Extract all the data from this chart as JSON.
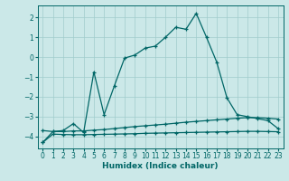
{
  "xlabel": "Humidex (Indice chaleur)",
  "background_color": "#cbe8e8",
  "grid_color": "#a0cccc",
  "line_color": "#006666",
  "xlim": [
    -0.5,
    23.5
  ],
  "ylim": [
    -4.6,
    2.6
  ],
  "xticks": [
    0,
    1,
    2,
    3,
    4,
    5,
    6,
    7,
    8,
    9,
    10,
    11,
    12,
    13,
    14,
    15,
    16,
    17,
    18,
    19,
    20,
    21,
    22,
    23
  ],
  "yticks": [
    -4,
    -3,
    -2,
    -1,
    0,
    1,
    2
  ],
  "line1_x": [
    0,
    1,
    2,
    3,
    4,
    5,
    6,
    7,
    8,
    9,
    10,
    11,
    12,
    13,
    14,
    15,
    16,
    17,
    18,
    19,
    20,
    21,
    22,
    23
  ],
  "line1_y": [
    -4.3,
    -3.75,
    -3.7,
    -3.35,
    -3.8,
    -0.75,
    -2.9,
    -1.45,
    -0.05,
    0.1,
    0.45,
    0.55,
    1.0,
    1.5,
    1.4,
    2.2,
    1.0,
    -0.25,
    -2.05,
    -2.9,
    -3.0,
    -3.1,
    -3.2,
    -3.6
  ],
  "line2_x": [
    0,
    1,
    2,
    3,
    4,
    5,
    6,
    7,
    8,
    9,
    10,
    11,
    12,
    13,
    14,
    15,
    16,
    17,
    18,
    19,
    20,
    21,
    22,
    23
  ],
  "line2_y": [
    -3.7,
    -3.75,
    -3.75,
    -3.72,
    -3.72,
    -3.68,
    -3.65,
    -3.6,
    -3.55,
    -3.5,
    -3.46,
    -3.42,
    -3.38,
    -3.33,
    -3.28,
    -3.24,
    -3.2,
    -3.16,
    -3.12,
    -3.08,
    -3.05,
    -3.05,
    -3.08,
    -3.12
  ],
  "line3_x": [
    0,
    1,
    2,
    3,
    4,
    5,
    6,
    7,
    8,
    9,
    10,
    11,
    12,
    13,
    14,
    15,
    16,
    17,
    18,
    19,
    20,
    21,
    22,
    23
  ],
  "line3_y": [
    -4.3,
    -3.88,
    -3.9,
    -3.91,
    -3.91,
    -3.9,
    -3.89,
    -3.88,
    -3.87,
    -3.86,
    -3.84,
    -3.83,
    -3.82,
    -3.81,
    -3.8,
    -3.79,
    -3.78,
    -3.77,
    -3.76,
    -3.75,
    -3.74,
    -3.74,
    -3.75,
    -3.76
  ]
}
